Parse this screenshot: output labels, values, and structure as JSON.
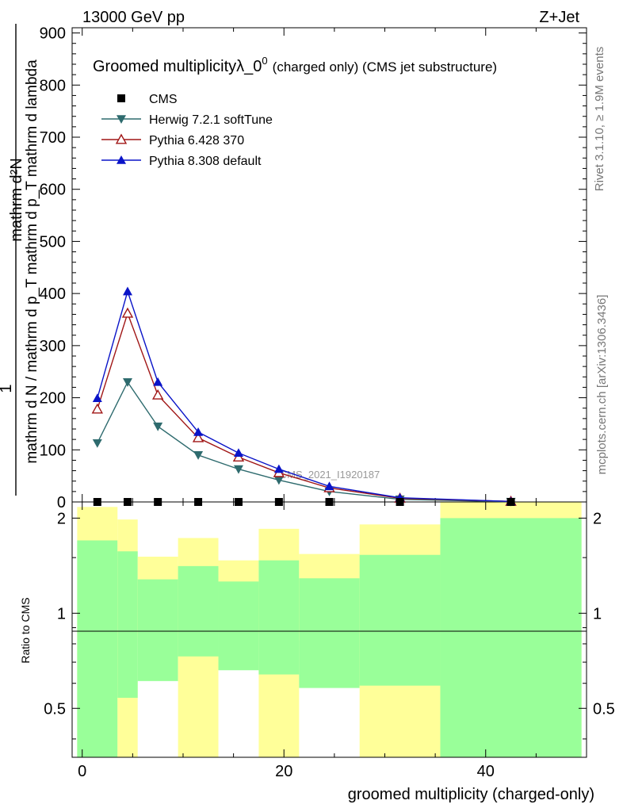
{
  "header": {
    "energy_label": "13000 GeV pp",
    "process_label": "Z+Jet"
  },
  "side_labels": {
    "rivet": "Rivet 3.1.10, ≥ 1.9M events",
    "mcplots": "mcplots.cern.ch [arXiv:1306.3436]"
  },
  "chart_data": {
    "type": "line",
    "title_main": "Groomed multiplicityλ_0",
    "title_sup": "0",
    "title_tail": "(charged only) (CMS jet substructure)",
    "watermark": "CMS_2021_I1920187",
    "ylabel_numerator": "mathrm d²N",
    "ylabel_denominator": "mathrm d N / mathrm d p_T mathrm d p_T mathrm d lambda",
    "ylabel_one": "1",
    "xlabel": "groomed multiplicity (charged-only)",
    "ratio_ylabel": "Ratio to CMS",
    "xlim": [
      -1,
      50
    ],
    "ylim": [
      0,
      910
    ],
    "ratio_ylim": [
      0.35,
      2.25
    ],
    "x_ticks": [
      0,
      20,
      40
    ],
    "x_tick_labels": [
      "0",
      "20",
      "40"
    ],
    "y_ticks": [
      0,
      100,
      200,
      300,
      400,
      500,
      600,
      700,
      800,
      900
    ],
    "y_tick_labels": [
      "0",
      "100",
      "200",
      "300",
      "400",
      "500",
      "600",
      "700",
      "800",
      "900"
    ],
    "ratio_ticks": [
      0.5,
      1,
      2
    ],
    "ratio_tick_labels": [
      "0.5",
      "1",
      "2"
    ],
    "legend_position": "top-left",
    "cms": {
      "name": "CMS",
      "x": [
        1.5,
        4.5,
        7.5,
        11.5,
        15.5,
        19.5,
        24.5,
        31.5,
        42.5
      ],
      "y": [
        0,
        0,
        0,
        0,
        0,
        0,
        0,
        0,
        0
      ]
    },
    "series": [
      {
        "name": "Herwig 7.2.1 softTune",
        "color": "#2e6b6e",
        "marker": "triangle-down-filled",
        "x": [
          1.5,
          4.5,
          7.5,
          11.5,
          15.5,
          19.5,
          24.5,
          31.5,
          42.5
        ],
        "y": [
          113,
          230,
          145,
          90,
          63,
          42,
          20,
          5,
          0.5
        ]
      },
      {
        "name": "Pythia 6.428 370",
        "color": "#a01616",
        "marker": "triangle-up-open",
        "x": [
          1.5,
          4.5,
          7.5,
          11.5,
          15.5,
          19.5,
          24.5,
          31.5,
          42.5
        ],
        "y": [
          178,
          362,
          205,
          123,
          86,
          56,
          27,
          7,
          1
        ]
      },
      {
        "name": "Pythia 8.308 default",
        "color": "#0a14c8",
        "marker": "triangle-up-filled",
        "x": [
          1.5,
          4.5,
          7.5,
          11.5,
          15.5,
          19.5,
          24.5,
          31.5,
          42.5
        ],
        "y": [
          199,
          404,
          230,
          134,
          94,
          63,
          30,
          8,
          1
        ]
      }
    ],
    "ratio_bands": {
      "green_color": "#99ff99",
      "yellow_color": "#ffff99",
      "bins": [
        {
          "x0": -0.5,
          "x1": 3.5,
          "green": [
            0.35,
            1.7
          ],
          "yellow": [
            0.35,
            2.17
          ]
        },
        {
          "x0": 3.5,
          "x1": 5.5,
          "green": [
            0.54,
            1.57
          ],
          "yellow": [
            0.35,
            1.98
          ]
        },
        {
          "x0": 5.5,
          "x1": 9.5,
          "green": [
            0.61,
            1.28
          ],
          "yellow": [
            0.84,
            1.51
          ]
        },
        {
          "x0": 9.5,
          "x1": 13.5,
          "green": [
            0.73,
            1.41
          ],
          "yellow": [
            0.35,
            1.73
          ]
        },
        {
          "x0": 13.5,
          "x1": 17.5,
          "green": [
            0.66,
            1.26
          ],
          "yellow": [
            0.86,
            1.47
          ]
        },
        {
          "x0": 17.5,
          "x1": 21.5,
          "green": [
            0.64,
            1.47
          ],
          "yellow": [
            0.35,
            1.85
          ]
        },
        {
          "x0": 21.5,
          "x1": 27.5,
          "green": [
            0.58,
            1.29
          ],
          "yellow": [
            0.82,
            1.54
          ]
        },
        {
          "x0": 27.5,
          "x1": 35.5,
          "green": [
            0.59,
            1.53
          ],
          "yellow": [
            0.35,
            1.91
          ]
        },
        {
          "x0": 35.5,
          "x1": 49.5,
          "green": [
            0.35,
            2.0
          ],
          "yellow": [
            0.35,
            2.25
          ]
        }
      ]
    }
  }
}
